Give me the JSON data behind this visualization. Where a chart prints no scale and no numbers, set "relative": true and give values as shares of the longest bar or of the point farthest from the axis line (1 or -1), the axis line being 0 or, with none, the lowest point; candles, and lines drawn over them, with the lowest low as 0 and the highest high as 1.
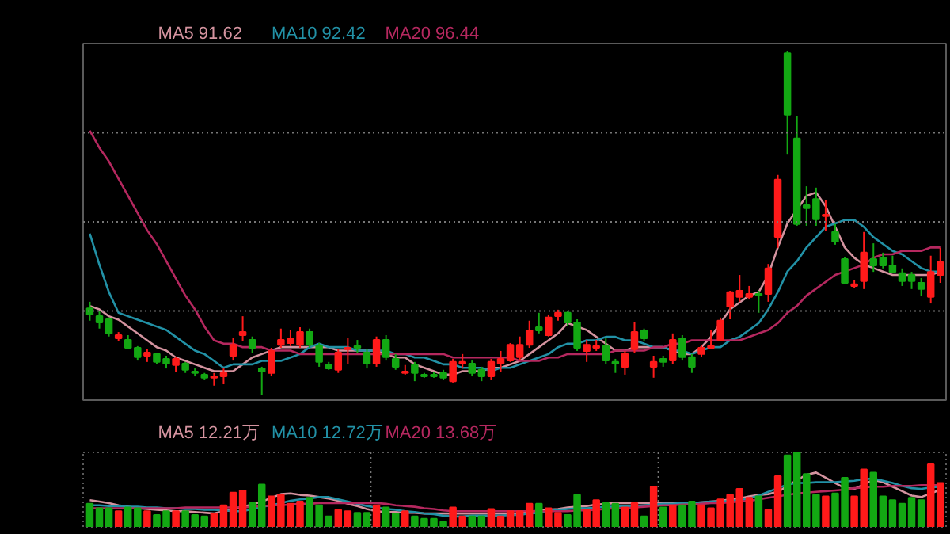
{
  "chart_data": [
    {
      "type": "candlestick",
      "relative": true,
      "tick_labels": false,
      "grid": "y",
      "categories": [
        null,
        null,
        null,
        null,
        null,
        null,
        null,
        null,
        null,
        null,
        null,
        null,
        null,
        null,
        null,
        null,
        null,
        null,
        null,
        null,
        null,
        null,
        null,
        null,
        null,
        null,
        null,
        null,
        null,
        null,
        null,
        null,
        null,
        null,
        null,
        null,
        null,
        null,
        null,
        null,
        null,
        null,
        null,
        null,
        null,
        null,
        null,
        null,
        null,
        null,
        null,
        null,
        null,
        null,
        null,
        null,
        null,
        null,
        null,
        null,
        null,
        null,
        null,
        null,
        null,
        null,
        null,
        null,
        null,
        null,
        null,
        null,
        null,
        null,
        null,
        null,
        null,
        null,
        null,
        null,
        null,
        null,
        null,
        null,
        null,
        null,
        null,
        null,
        null,
        null
      ],
      "ohlc": [
        [
          0.253,
          0.272,
          0.217,
          0.235
        ],
        [
          0.23,
          0.244,
          0.194,
          0.212
        ],
        [
          0.221,
          0.226,
          0.171,
          0.18
        ],
        [
          0.166,
          0.184,
          0.157,
          0.175
        ],
        [
          0.161,
          0.175,
          0.134,
          0.138
        ],
        [
          0.138,
          0.143,
          0.101,
          0.111
        ],
        [
          0.115,
          0.134,
          0.097,
          0.124
        ],
        [
          0.12,
          0.124,
          0.092,
          0.097
        ],
        [
          0.106,
          0.115,
          0.078,
          0.092
        ],
        [
          0.088,
          0.111,
          0.069,
          0.106
        ],
        [
          0.092,
          0.097,
          0.065,
          0.074
        ],
        [
          0.069,
          0.078,
          0.055,
          0.065
        ],
        [
          0.06,
          0.065,
          0.046,
          0.051
        ],
        [
          0.051,
          0.065,
          0.028,
          0.055
        ],
        [
          0.055,
          0.078,
          0.032,
          0.065
        ],
        [
          0.115,
          0.166,
          0.101,
          0.147
        ],
        [
          0.175,
          0.23,
          0.157,
          0.184
        ],
        [
          0.161,
          0.171,
          0.124,
          0.138
        ],
        [
          0.078,
          0.083,
          0.0,
          0.069
        ],
        [
          0.065,
          0.138,
          0.055,
          0.129
        ],
        [
          0.147,
          0.194,
          0.138,
          0.161
        ],
        [
          0.152,
          0.189,
          0.143,
          0.166
        ],
        [
          0.147,
          0.198,
          0.138,
          0.184
        ],
        [
          0.184,
          0.194,
          0.138,
          0.147
        ],
        [
          0.143,
          0.152,
          0.083,
          0.097
        ],
        [
          0.088,
          0.097,
          0.074,
          0.078
        ],
        [
          0.074,
          0.134,
          0.065,
          0.124
        ],
        [
          0.134,
          0.166,
          0.092,
          0.138
        ],
        [
          0.143,
          0.161,
          0.124,
          0.138
        ],
        [
          0.124,
          0.134,
          0.078,
          0.092
        ],
        [
          0.092,
          0.171,
          0.083,
          0.161
        ],
        [
          0.161,
          0.175,
          0.101,
          0.111
        ],
        [
          0.106,
          0.12,
          0.074,
          0.083
        ],
        [
          0.065,
          0.088,
          0.06,
          0.069
        ],
        [
          0.088,
          0.097,
          0.041,
          0.065
        ],
        [
          0.06,
          0.065,
          0.051,
          0.055
        ],
        [
          0.06,
          0.069,
          0.051,
          0.055
        ],
        [
          0.065,
          0.074,
          0.046,
          0.051
        ],
        [
          0.041,
          0.106,
          0.037,
          0.097
        ],
        [
          0.092,
          0.12,
          0.078,
          0.097
        ],
        [
          0.092,
          0.101,
          0.055,
          0.065
        ],
        [
          0.074,
          0.083,
          0.041,
          0.055
        ],
        [
          0.055,
          0.106,
          0.046,
          0.097
        ],
        [
          0.092,
          0.129,
          0.069,
          0.106
        ],
        [
          0.101,
          0.152,
          0.097,
          0.147
        ],
        [
          0.111,
          0.171,
          0.101,
          0.147
        ],
        [
          0.147,
          0.217,
          0.138,
          0.189
        ],
        [
          0.198,
          0.24,
          0.18,
          0.189
        ],
        [
          0.175,
          0.235,
          0.171,
          0.226
        ],
        [
          0.23,
          0.249,
          0.217,
          0.24
        ],
        [
          0.24,
          0.244,
          0.203,
          0.212
        ],
        [
          0.212,
          0.221,
          0.129,
          0.138
        ],
        [
          0.129,
          0.161,
          0.097,
          0.147
        ],
        [
          0.138,
          0.161,
          0.129,
          0.143
        ],
        [
          0.143,
          0.166,
          0.092,
          0.101
        ],
        [
          0.097,
          0.106,
          0.065,
          0.092
        ],
        [
          0.083,
          0.129,
          0.06,
          0.12
        ],
        [
          0.134,
          0.212,
          0.124,
          0.184
        ],
        [
          0.189,
          0.194,
          0.157,
          0.166
        ],
        [
          0.083,
          0.115,
          0.051,
          0.097
        ],
        [
          0.106,
          0.115,
          0.083,
          0.097
        ],
        [
          0.101,
          0.18,
          0.092,
          0.161
        ],
        [
          0.166,
          0.175,
          0.101,
          0.111
        ],
        [
          0.111,
          0.12,
          0.065,
          0.083
        ],
        [
          0.12,
          0.147,
          0.111,
          0.138
        ],
        [
          0.138,
          0.189,
          0.134,
          0.143
        ],
        [
          0.161,
          0.226,
          0.157,
          0.217
        ],
        [
          0.258,
          0.304,
          0.221,
          0.3
        ],
        [
          0.286,
          0.35,
          0.272,
          0.304
        ],
        [
          0.286,
          0.318,
          0.281,
          0.295
        ],
        [
          0.295,
          0.304,
          0.24,
          0.29
        ],
        [
          0.295,
          0.382,
          0.272,
          0.369
        ],
        [
          0.461,
          0.641,
          0.429,
          0.627
        ],
        [
          0.995,
          1.0,
          0.7,
          0.816
        ],
        [
          0.747,
          0.811,
          0.493,
          0.498
        ],
        [
          0.553,
          0.608,
          0.493,
          0.544
        ],
        [
          0.571,
          0.604,
          0.493,
          0.512
        ],
        [
          0.521,
          0.567,
          0.479,
          0.525
        ],
        [
          0.475,
          0.498,
          0.438,
          0.447
        ],
        [
          0.396,
          0.401,
          0.323,
          0.327
        ],
        [
          0.318,
          0.336,
          0.313,
          0.323
        ],
        [
          0.332,
          0.475,
          0.309,
          0.415
        ],
        [
          0.396,
          0.442,
          0.359,
          0.378
        ],
        [
          0.401,
          0.415,
          0.369,
          0.378
        ],
        [
          0.378,
          0.406,
          0.355,
          0.359
        ],
        [
          0.355,
          0.369,
          0.318,
          0.332
        ],
        [
          0.35,
          0.359,
          0.309,
          0.332
        ],
        [
          0.327,
          0.341,
          0.29,
          0.309
        ],
        [
          0.286,
          0.406,
          0.267,
          0.359
        ],
        [
          0.35,
          0.429,
          0.327,
          0.387
        ]
      ],
      "colors": [
        "#13a813",
        "#13a813",
        "#13a813",
        "#ff1a1a",
        "#13a813",
        "#13a813",
        "#ff1a1a",
        "#13a813",
        "#13a813",
        "#ff1a1a",
        "#13a813",
        "#13a813",
        "#13a813",
        "#ff1a1a",
        "#ff1a1a",
        "#ff1a1a",
        "#ff1a1a",
        "#13a813",
        "#13a813",
        "#ff1a1a",
        "#ff1a1a",
        "#ff1a1a",
        "#ff1a1a",
        "#13a813",
        "#13a813",
        "#13a813",
        "#ff1a1a",
        "#ff1a1a",
        "#13a813",
        "#13a813",
        "#ff1a1a",
        "#13a813",
        "#13a813",
        "#ff1a1a",
        "#13a813",
        "#13a813",
        "#13a813",
        "#13a813",
        "#ff1a1a",
        "#ff1a1a",
        "#13a813",
        "#13a813",
        "#ff1a1a",
        "#ff1a1a",
        "#ff1a1a",
        "#ff1a1a",
        "#ff1a1a",
        "#13a813",
        "#ff1a1a",
        "#ff1a1a",
        "#13a813",
        "#13a813",
        "#ff1a1a",
        "#ff1a1a",
        "#13a813",
        "#13a813",
        "#ff1a1a",
        "#ff1a1a",
        "#13a813",
        "#ff1a1a",
        "#13a813",
        "#ff1a1a",
        "#13a813",
        "#13a813",
        "#ff1a1a",
        "#ff1a1a",
        "#ff1a1a",
        "#ff1a1a",
        "#ff1a1a",
        "#ff1a1a",
        "#13a813",
        "#ff1a1a",
        "#ff1a1a",
        "#13a813",
        "#13a813",
        "#13a813",
        "#13a813",
        "#ff1a1a",
        "#13a813",
        "#13a813",
        "#ff1a1a",
        "#ff1a1a",
        "#13a813",
        "#13a813",
        "#13a813",
        "#13a813",
        "#13a813",
        "#13a813",
        "#ff1a1a",
        "#ff1a1a"
      ],
      "series": [
        {
          "type": "line",
          "name": "MA5 91.62",
          "color": "#d4939f",
          "values": [
            0.26,
            0.25,
            0.23,
            0.22,
            0.2,
            0.18,
            0.16,
            0.14,
            0.13,
            0.11,
            0.1,
            0.09,
            0.08,
            0.07,
            0.07,
            0.07,
            0.09,
            0.11,
            0.12,
            0.13,
            0.14,
            0.14,
            0.14,
            0.14,
            0.14,
            0.14,
            0.13,
            0.13,
            0.13,
            0.13,
            0.13,
            0.12,
            0.11,
            0.11,
            0.09,
            0.08,
            0.07,
            0.06,
            0.06,
            0.07,
            0.07,
            0.07,
            0.08,
            0.08,
            0.09,
            0.1,
            0.12,
            0.14,
            0.16,
            0.18,
            0.21,
            0.2,
            0.19,
            0.17,
            0.15,
            0.13,
            0.13,
            0.14,
            0.14,
            0.14,
            0.14,
            0.13,
            0.12,
            0.12,
            0.14,
            0.17,
            0.21,
            0.25,
            0.27,
            0.29,
            0.3,
            0.35,
            0.43,
            0.5,
            0.54,
            0.58,
            0.59,
            0.55,
            0.49,
            0.43,
            0.4,
            0.38,
            0.37,
            0.36,
            0.35,
            0.35,
            0.35,
            0.35,
            0.35,
            0.36
          ]
        },
        {
          "type": "line",
          "name": "MA10 92.42",
          "color": "#2291a6",
          "values": [
            0.47,
            0.38,
            0.3,
            0.24,
            0.23,
            0.22,
            0.21,
            0.2,
            0.19,
            0.17,
            0.15,
            0.13,
            0.12,
            0.1,
            0.08,
            0.09,
            0.09,
            0.09,
            0.1,
            0.1,
            0.1,
            0.11,
            0.12,
            0.14,
            0.15,
            0.14,
            0.14,
            0.14,
            0.13,
            0.13,
            0.13,
            0.13,
            0.12,
            0.12,
            0.11,
            0.11,
            0.1,
            0.09,
            0.09,
            0.08,
            0.08,
            0.08,
            0.07,
            0.08,
            0.08,
            0.09,
            0.1,
            0.11,
            0.12,
            0.14,
            0.15,
            0.15,
            0.16,
            0.16,
            0.17,
            0.17,
            0.16,
            0.16,
            0.15,
            0.14,
            0.14,
            0.13,
            0.13,
            0.12,
            0.13,
            0.14,
            0.14,
            0.16,
            0.17,
            0.19,
            0.21,
            0.25,
            0.3,
            0.36,
            0.39,
            0.43,
            0.46,
            0.49,
            0.5,
            0.51,
            0.51,
            0.49,
            0.46,
            0.44,
            0.42,
            0.41,
            0.39,
            0.37,
            0.36,
            0.36
          ]
        },
        {
          "type": "line",
          "name": "MA20 96.44",
          "color": "#b5285f",
          "values": [
            0.77,
            0.72,
            0.68,
            0.63,
            0.58,
            0.53,
            0.48,
            0.44,
            0.39,
            0.34,
            0.29,
            0.25,
            0.2,
            0.16,
            0.15,
            0.15,
            0.14,
            0.14,
            0.14,
            0.13,
            0.13,
            0.13,
            0.12,
            0.12,
            0.12,
            0.12,
            0.12,
            0.12,
            0.12,
            0.12,
            0.12,
            0.12,
            0.12,
            0.12,
            0.12,
            0.12,
            0.12,
            0.12,
            0.11,
            0.11,
            0.11,
            0.11,
            0.11,
            0.11,
            0.11,
            0.1,
            0.1,
            0.1,
            0.11,
            0.11,
            0.12,
            0.12,
            0.12,
            0.12,
            0.12,
            0.13,
            0.13,
            0.13,
            0.13,
            0.14,
            0.14,
            0.15,
            0.15,
            0.16,
            0.16,
            0.16,
            0.16,
            0.16,
            0.16,
            0.17,
            0.18,
            0.19,
            0.21,
            0.24,
            0.26,
            0.29,
            0.31,
            0.33,
            0.35,
            0.36,
            0.37,
            0.38,
            0.4,
            0.41,
            0.41,
            0.42,
            0.42,
            0.42,
            0.43,
            0.43
          ]
        }
      ]
    },
    {
      "type": "bar",
      "relative": true,
      "tick_labels": false,
      "grid": "x",
      "categories": [
        null,
        null,
        null,
        null,
        null,
        null,
        null,
        null,
        null,
        null,
        null,
        null,
        null,
        null,
        null,
        null,
        null,
        null,
        null,
        null,
        null,
        null,
        null,
        null,
        null,
        null,
        null,
        null,
        null,
        null,
        null,
        null,
        null,
        null,
        null,
        null,
        null,
        null,
        null,
        null,
        null,
        null,
        null,
        null,
        null,
        null,
        null,
        null,
        null,
        null,
        null,
        null,
        null,
        null,
        null,
        null,
        null,
        null,
        null,
        null,
        null,
        null,
        null,
        null,
        null,
        null,
        null,
        null,
        null,
        null,
        null,
        null,
        null,
        null,
        null,
        null,
        null,
        null,
        null,
        null,
        null,
        null,
        null,
        null,
        null,
        null,
        null,
        null,
        null,
        null
      ],
      "values": [
        0.31,
        0.25,
        0.25,
        0.21,
        0.26,
        0.25,
        0.21,
        0.16,
        0.21,
        0.21,
        0.21,
        0.16,
        0.14,
        0.18,
        0.29,
        0.46,
        0.49,
        0.32,
        0.57,
        0.41,
        0.43,
        0.31,
        0.34,
        0.39,
        0.29,
        0.14,
        0.23,
        0.21,
        0.19,
        0.19,
        0.29,
        0.26,
        0.18,
        0.21,
        0.14,
        0.11,
        0.11,
        0.07,
        0.26,
        0.14,
        0.14,
        0.14,
        0.24,
        0.14,
        0.21,
        0.21,
        0.31,
        0.31,
        0.25,
        0.19,
        0.16,
        0.43,
        0.23,
        0.36,
        0.32,
        0.31,
        0.26,
        0.32,
        0.14,
        0.54,
        0.26,
        0.29,
        0.29,
        0.34,
        0.29,
        0.25,
        0.37,
        0.43,
        0.51,
        0.39,
        0.41,
        0.23,
        0.68,
        0.96,
        1,
        0.71,
        0.43,
        0.41,
        0.45,
        0.66,
        0.41,
        0.77,
        0.73,
        0.41,
        0.36,
        0.31,
        0.39,
        0.36,
        0.84,
        0.59
      ],
      "colors": [
        "#13a813",
        "#13a813",
        "#13a813",
        "#ff1a1a",
        "#13a813",
        "#13a813",
        "#ff1a1a",
        "#13a813",
        "#13a813",
        "#ff1a1a",
        "#13a813",
        "#13a813",
        "#13a813",
        "#ff1a1a",
        "#ff1a1a",
        "#ff1a1a",
        "#ff1a1a",
        "#13a813",
        "#13a813",
        "#ff1a1a",
        "#ff1a1a",
        "#ff1a1a",
        "#ff1a1a",
        "#13a813",
        "#13a813",
        "#13a813",
        "#ff1a1a",
        "#ff1a1a",
        "#13a813",
        "#13a813",
        "#ff1a1a",
        "#13a813",
        "#13a813",
        "#ff1a1a",
        "#13a813",
        "#13a813",
        "#13a813",
        "#13a813",
        "#ff1a1a",
        "#ff1a1a",
        "#13a813",
        "#13a813",
        "#ff1a1a",
        "#ff1a1a",
        "#ff1a1a",
        "#ff1a1a",
        "#ff1a1a",
        "#13a813",
        "#ff1a1a",
        "#ff1a1a",
        "#13a813",
        "#13a813",
        "#ff1a1a",
        "#ff1a1a",
        "#13a813",
        "#13a813",
        "#ff1a1a",
        "#ff1a1a",
        "#13a813",
        "#ff1a1a",
        "#13a813",
        "#ff1a1a",
        "#13a813",
        "#13a813",
        "#ff1a1a",
        "#ff1a1a",
        "#ff1a1a",
        "#ff1a1a",
        "#ff1a1a",
        "#ff1a1a",
        "#13a813",
        "#ff1a1a",
        "#ff1a1a",
        "#13a813",
        "#13a813",
        "#13a813",
        "#13a813",
        "#ff1a1a",
        "#13a813",
        "#13a813",
        "#ff1a1a",
        "#ff1a1a",
        "#13a813",
        "#13a813",
        "#13a813",
        "#13a813",
        "#13a813",
        "#13a813",
        "#ff1a1a",
        "#ff1a1a"
      ],
      "series": [
        {
          "type": "line",
          "name": "MA5 12.21万",
          "color": "#d4939f",
          "values": [
            0.36,
            0.34,
            0.32,
            0.29,
            0.27,
            0.25,
            0.24,
            0.23,
            0.22,
            0.21,
            0.21,
            0.2,
            0.19,
            0.18,
            0.21,
            0.24,
            0.27,
            0.3,
            0.34,
            0.39,
            0.44,
            0.45,
            0.43,
            0.42,
            0.4,
            0.38,
            0.35,
            0.31,
            0.28,
            0.24,
            0.21,
            0.2,
            0.2,
            0.19,
            0.19,
            0.18,
            0.18,
            0.18,
            0.18,
            0.18,
            0.18,
            0.18,
            0.18,
            0.18,
            0.18,
            0.18,
            0.2,
            0.22,
            0.23,
            0.24,
            0.26,
            0.27,
            0.28,
            0.3,
            0.31,
            0.32,
            0.32,
            0.32,
            0.32,
            0.32,
            0.32,
            0.32,
            0.32,
            0.32,
            0.33,
            0.34,
            0.35,
            0.37,
            0.38,
            0.41,
            0.43,
            0.44,
            0.47,
            0.55,
            0.63,
            0.7,
            0.73,
            0.66,
            0.59,
            0.52,
            0.51,
            0.57,
            0.63,
            0.6,
            0.54,
            0.48,
            0.42,
            0.4,
            0.45,
            0.5
          ]
        },
        {
          "type": "line",
          "name": "MA10 12.72万",
          "color": "#2291a6",
          "values": [
            0.29,
            0.29,
            0.28,
            0.28,
            0.27,
            0.27,
            0.26,
            0.26,
            0.25,
            0.25,
            0.24,
            0.24,
            0.23,
            0.23,
            0.22,
            0.21,
            0.21,
            0.24,
            0.27,
            0.29,
            0.32,
            0.35,
            0.37,
            0.38,
            0.4,
            0.4,
            0.37,
            0.34,
            0.31,
            0.28,
            0.26,
            0.24,
            0.23,
            0.21,
            0.2,
            0.18,
            0.17,
            0.15,
            0.14,
            0.14,
            0.15,
            0.15,
            0.15,
            0.15,
            0.16,
            0.16,
            0.18,
            0.19,
            0.21,
            0.23,
            0.24,
            0.25,
            0.25,
            0.26,
            0.27,
            0.27,
            0.28,
            0.28,
            0.29,
            0.3,
            0.31,
            0.31,
            0.32,
            0.32,
            0.33,
            0.34,
            0.34,
            0.35,
            0.36,
            0.38,
            0.42,
            0.47,
            0.52,
            0.57,
            0.59,
            0.59,
            0.6,
            0.6,
            0.6,
            0.61,
            0.62,
            0.64,
            0.65,
            0.62,
            0.59,
            0.55,
            0.52,
            0.51,
            0.53,
            0.54
          ]
        },
        {
          "type": "line",
          "name": "MA20 13.68万",
          "color": "#b5285f",
          "values": [
            0.25,
            0.25,
            0.25,
            0.25,
            0.25,
            0.25,
            0.25,
            0.25,
            0.25,
            0.25,
            0.26,
            0.26,
            0.26,
            0.26,
            0.26,
            0.26,
            0.26,
            0.27,
            0.28,
            0.29,
            0.29,
            0.3,
            0.31,
            0.31,
            0.32,
            0.32,
            0.32,
            0.32,
            0.32,
            0.32,
            0.32,
            0.31,
            0.29,
            0.28,
            0.27,
            0.25,
            0.24,
            0.22,
            0.21,
            0.21,
            0.21,
            0.21,
            0.21,
            0.21,
            0.21,
            0.21,
            0.21,
            0.21,
            0.21,
            0.21,
            0.21,
            0.22,
            0.22,
            0.23,
            0.24,
            0.25,
            0.25,
            0.26,
            0.27,
            0.28,
            0.29,
            0.29,
            0.3,
            0.3,
            0.31,
            0.32,
            0.32,
            0.33,
            0.34,
            0.35,
            0.37,
            0.39,
            0.41,
            0.43,
            0.45,
            0.46,
            0.47,
            0.48,
            0.49,
            0.5,
            0.52,
            0.53,
            0.54,
            0.54,
            0.55,
            0.55,
            0.55,
            0.56,
            0.56,
            0.56
          ]
        }
      ]
    }
  ]
}
